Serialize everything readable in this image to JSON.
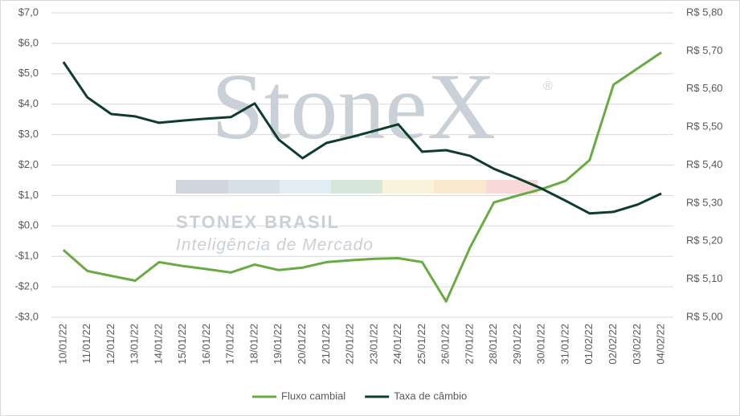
{
  "chart_data": {
    "type": "line",
    "categories": [
      "10/01/22",
      "11/01/22",
      "12/01/22",
      "13/01/22",
      "14/01/22",
      "15/01/22",
      "16/01/22",
      "17/01/22",
      "18/01/22",
      "19/01/22",
      "20/01/22",
      "21/01/22",
      "22/01/22",
      "23/01/22",
      "24/01/22",
      "25/01/22",
      "26/01/22",
      "27/01/22",
      "28/01/22",
      "29/01/22",
      "30/01/22",
      "31/01/22",
      "01/02/22",
      "02/02/22",
      "03/02/22",
      "04/02/22"
    ],
    "series": [
      {
        "name": "Fluxo cambial",
        "color": "#6aaa45",
        "values": [
          -0.79,
          -1.48,
          -1.64,
          -1.8,
          -1.19,
          -1.32,
          -1.42,
          -1.53,
          -1.27,
          -1.45,
          -1.37,
          -1.19,
          -1.13,
          -1.08,
          -1.06,
          -1.19,
          -2.48,
          -0.71,
          0.77,
          1.0,
          1.21,
          1.48,
          2.16,
          4.64,
          5.17,
          5.7
        ]
      },
      {
        "name": "Taxa de câmbio",
        "color": "#0f3d2c",
        "axis": "y2",
        "values": [
          5.671,
          5.578,
          5.534,
          5.528,
          5.511,
          5.517,
          5.522,
          5.526,
          5.562,
          5.467,
          5.418,
          5.458,
          5.473,
          5.49,
          5.507,
          5.435,
          5.439,
          5.424,
          5.39,
          5.365,
          5.338,
          5.306,
          5.273,
          5.277,
          5.296,
          5.325
        ]
      }
    ],
    "ylim": [
      -3,
      7
    ],
    "yticks": [
      {
        "value": -3,
        "label": "-$3,0"
      },
      {
        "value": -2,
        "label": "-$2,0"
      },
      {
        "value": -1,
        "label": "-$1,0"
      },
      {
        "value": 0,
        "label": "$0,0"
      },
      {
        "value": 1,
        "label": "$1,0"
      },
      {
        "value": 2,
        "label": "$2,0"
      },
      {
        "value": 3,
        "label": "$3,0"
      },
      {
        "value": 4,
        "label": "$4,0"
      },
      {
        "value": 5,
        "label": "$5,0"
      },
      {
        "value": 6,
        "label": "$6,0"
      },
      {
        "value": 7,
        "label": "$7,0"
      }
    ],
    "y2lim": [
      5.0,
      5.8
    ],
    "y2ticks": [
      {
        "value": 5.0,
        "label": "R$ 5,00"
      },
      {
        "value": 5.1,
        "label": "R$ 5,10"
      },
      {
        "value": 5.2,
        "label": "R$ 5,20"
      },
      {
        "value": 5.3,
        "label": "R$ 5,30"
      },
      {
        "value": 5.4,
        "label": "R$ 5,40"
      },
      {
        "value": 5.5,
        "label": "R$ 5,50"
      },
      {
        "value": 5.6,
        "label": "R$ 5,60"
      },
      {
        "value": 5.7,
        "label": "R$ 5,70"
      },
      {
        "value": 5.8,
        "label": "R$ 5,80"
      }
    ],
    "grid": true,
    "legend": "bottom",
    "watermark": {
      "logo": "StoneX",
      "mark": "®",
      "company": "STONEX BRASIL",
      "tagline": "Inteligência de Mercado"
    }
  }
}
